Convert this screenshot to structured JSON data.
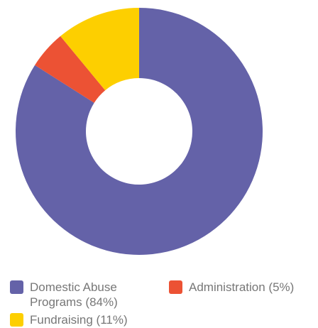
{
  "chart_data": {
    "type": "pie",
    "donut": true,
    "slices": [
      {
        "label": "Domestic Abuse Programs",
        "value": 84,
        "legend": "Domestic Abuse Programs (84%)",
        "color": "#6462a8"
      },
      {
        "label": "Administration",
        "value": 5,
        "legend": "Administration (5%)",
        "color": "#ec5234"
      },
      {
        "label": "Fundraising",
        "value": 11,
        "legend": "Fundraising (11%)",
        "color": "#fdcf00"
      }
    ],
    "legend_position": "bottom"
  }
}
